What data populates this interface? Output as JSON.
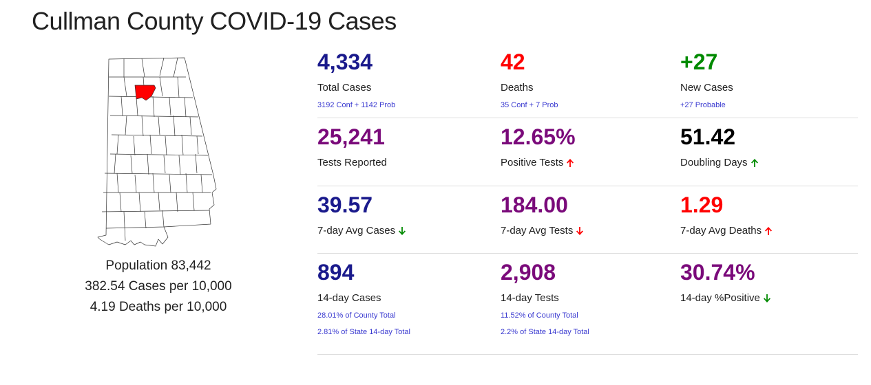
{
  "title": "Cullman County COVID-19 Cases",
  "left_panel": {
    "population": "Population 83,442",
    "cases_per_10k": "382.54 Cases per 10,000",
    "deaths_per_10k": "4.19 Deaths per 10,000"
  },
  "colors": {
    "navy": "#1a1a8c",
    "red": "#ff0000",
    "green": "#008a00",
    "purple": "#7a0a7a",
    "link_blue": "#3a3ad0",
    "highlight_county": "#ff0000"
  },
  "rows": [
    [
      {
        "value": "4,334",
        "label": "Total Cases",
        "subs": [
          "3192 Conf + 1142 Prob"
        ],
        "color": "navy"
      },
      {
        "value": "42",
        "label": "Deaths",
        "subs": [
          "35 Conf + 7 Prob"
        ],
        "color": "red"
      },
      {
        "value": "+27",
        "label": "New Cases",
        "subs": [
          "+27 Probable"
        ],
        "color": "green"
      }
    ],
    [
      {
        "value": "25,241",
        "label": "Tests Reported",
        "subs": [],
        "color": "purple"
      },
      {
        "value": "12.65%",
        "label": "Positive Tests",
        "subs": [],
        "color": "purple",
        "trend": "up-red"
      },
      {
        "value": "51.42",
        "label": "Doubling Days",
        "subs": [],
        "color": "black",
        "trend": "up-green"
      }
    ],
    [
      {
        "value": "39.57",
        "label": "7-day Avg Cases",
        "subs": [],
        "color": "navy",
        "trend": "down-green"
      },
      {
        "value": "184.00",
        "label": "7-day Avg Tests",
        "subs": [],
        "color": "purple",
        "trend": "down-red"
      },
      {
        "value": "1.29",
        "label": "7-day Avg Deaths",
        "subs": [],
        "color": "red",
        "trend": "up-red"
      }
    ],
    [
      {
        "value": "894",
        "label": "14-day Cases",
        "subs": [
          "28.01% of County Total",
          "2.81% of State 14-day Total"
        ],
        "color": "navy"
      },
      {
        "value": "2,908",
        "label": "14-day Tests",
        "subs": [
          "11.52% of County Total",
          "2.2% of State 14-day Total"
        ],
        "color": "purple"
      },
      {
        "value": "30.74%",
        "label": "14-day %Positive",
        "subs": [],
        "color": "purple",
        "trend": "down-green"
      }
    ]
  ]
}
